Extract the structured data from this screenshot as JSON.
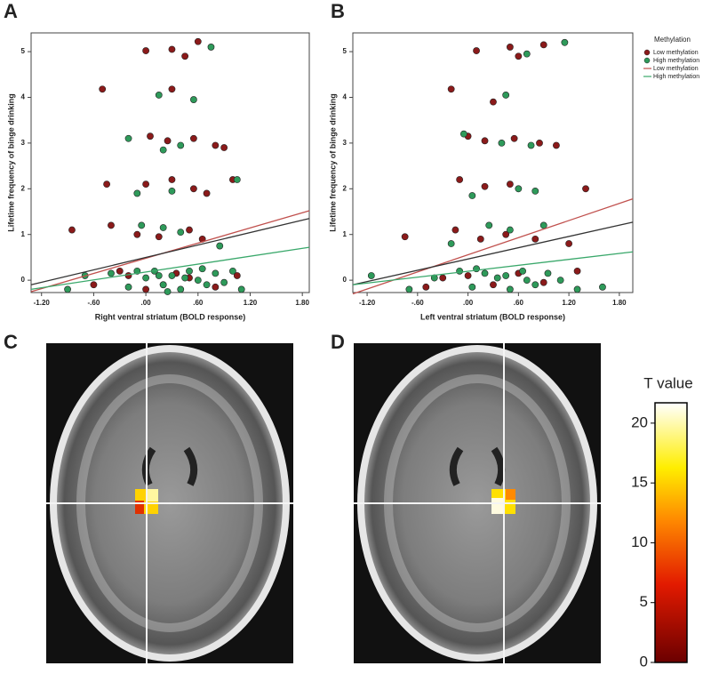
{
  "panel_labels": [
    "A",
    "B",
    "C",
    "D"
  ],
  "chart_data": [
    {
      "type": "scatter",
      "x_label": "Right ventral striatum (BOLD response)",
      "y_label": "Lifetime frequency of binge drinking",
      "xlim": [
        -1.32,
        1.88
      ],
      "ylim": [
        -0.27,
        5.41
      ],
      "xticks": [
        {
          "value": -1.2,
          "label": "-1.20"
        },
        {
          "value": -0.6,
          "label": "-.60"
        },
        {
          "value": 0,
          "label": ".00"
        },
        {
          "value": 0.6,
          "label": ".60"
        },
        {
          "value": 1.2,
          "label": "1.20"
        },
        {
          "value": 1.8,
          "label": "1.80"
        }
      ],
      "yticks": [
        0,
        1,
        2,
        3,
        4,
        5
      ],
      "series": [
        {
          "color": "#8b1a1a",
          "x": [
            -0.85,
            -0.5,
            -0.45,
            -0.4,
            -0.2,
            0.0,
            0.3,
            0.45,
            0.6,
            0.3,
            0.05,
            0.25,
            0.55,
            0.8,
            0.9,
            0.0,
            0.3,
            0.55,
            0.7,
            -0.1,
            0.15,
            0.5,
            1.0,
            -0.3,
            0.2,
            0.5,
            0.8,
            1.05,
            0.0,
            0.35,
            -0.6,
            0.65
          ],
          "y": [
            1.1,
            4.18,
            2.1,
            1.2,
            0.1,
            5.02,
            5.05,
            4.9,
            5.22,
            4.18,
            3.15,
            3.05,
            3.1,
            2.95,
            2.9,
            2.1,
            2.2,
            2.0,
            1.9,
            1.0,
            0.95,
            1.1,
            2.2,
            0.2,
            -0.1,
            0.05,
            -0.15,
            0.1,
            -0.2,
            0.15,
            -0.1,
            0.9
          ]
        },
        {
          "color": "#2e9a5a",
          "x": [
            0.75,
            0.15,
            0.55,
            -0.2,
            0.2,
            0.4,
            -0.1,
            0.3,
            1.05,
            -0.05,
            0.2,
            0.4,
            0.85,
            -0.7,
            -0.4,
            -0.2,
            0.0,
            0.1,
            0.2,
            0.3,
            0.4,
            0.5,
            0.6,
            0.7,
            0.8,
            0.9,
            1.0,
            -0.1,
            0.25,
            0.45,
            0.15,
            0.65,
            -0.9,
            1.1
          ],
          "y": [
            5.1,
            4.05,
            3.95,
            3.1,
            2.85,
            2.95,
            1.9,
            1.95,
            2.2,
            1.2,
            1.15,
            1.05,
            0.75,
            0.1,
            0.15,
            -0.15,
            0.05,
            0.2,
            -0.1,
            0.1,
            -0.2,
            0.2,
            0.0,
            -0.1,
            0.15,
            -0.05,
            0.2,
            0.2,
            -0.25,
            0.05,
            0.1,
            0.25,
            -0.2,
            -0.2
          ]
        }
      ],
      "lines": [
        {
          "color": "#c0504d",
          "x": [
            -1.32,
            1.88
          ],
          "y": [
            -0.25,
            1.52
          ]
        },
        {
          "color": "#333333",
          "x": [
            -1.32,
            1.88
          ],
          "y": [
            -0.1,
            1.35
          ]
        },
        {
          "color": "#3aa86b",
          "x": [
            -1.32,
            1.88
          ],
          "y": [
            -0.2,
            0.72
          ]
        }
      ]
    },
    {
      "type": "scatter",
      "x_label": "Left ventral striatum (BOLD response)",
      "y_label": "Lifetime frequency of binge drinking",
      "xlim": [
        -1.37,
        1.96
      ],
      "ylim": [
        -0.27,
        5.41
      ],
      "xticks": [
        {
          "value": -1.2,
          "label": "-1.20"
        },
        {
          "value": -0.6,
          "label": "-.60"
        },
        {
          "value": 0,
          "label": ".00"
        },
        {
          "value": 0.6,
          "label": ".60"
        },
        {
          "value": 1.2,
          "label": "1.20"
        },
        {
          "value": 1.8,
          "label": "1.80"
        }
      ],
      "yticks": [
        0,
        1,
        2,
        3,
        4,
        5
      ],
      "legend": "right",
      "legend_title": "Methylation",
      "series": [
        {
          "name": "Low methylation",
          "color": "#8b1a1a",
          "x": [
            -0.75,
            -0.2,
            0.1,
            0.5,
            0.9,
            0.6,
            0.3,
            0.0,
            0.2,
            0.55,
            0.85,
            1.05,
            -0.1,
            0.2,
            0.5,
            1.4,
            -0.15,
            0.15,
            0.45,
            0.8,
            1.2,
            -0.5,
            0.0,
            0.3,
            0.6,
            0.9,
            1.3,
            -0.3
          ],
          "y": [
            0.95,
            4.18,
            5.02,
            5.1,
            5.15,
            4.9,
            3.9,
            3.15,
            3.05,
            3.1,
            3.0,
            2.95,
            2.2,
            2.05,
            2.1,
            2.0,
            1.1,
            0.9,
            1.0,
            0.9,
            0.8,
            -0.15,
            0.1,
            -0.1,
            0.15,
            -0.05,
            0.2,
            0.05
          ]
        },
        {
          "name": "High methylation",
          "color": "#2e9a5a",
          "x": [
            0.7,
            1.15,
            0.45,
            -0.05,
            0.4,
            0.75,
            0.05,
            0.6,
            0.8,
            -0.2,
            0.25,
            0.5,
            0.9,
            -1.15,
            -0.7,
            -0.4,
            -0.1,
            0.05,
            0.2,
            0.35,
            0.5,
            0.65,
            0.8,
            0.95,
            1.1,
            1.3,
            1.6,
            0.1,
            0.45,
            0.7
          ],
          "y": [
            4.95,
            5.2,
            4.05,
            3.2,
            3.0,
            2.95,
            1.85,
            2.0,
            1.95,
            0.8,
            1.2,
            1.1,
            1.2,
            0.1,
            -0.2,
            0.05,
            0.2,
            -0.15,
            0.15,
            0.05,
            -0.2,
            0.2,
            -0.1,
            0.15,
            0.0,
            -0.2,
            -0.15,
            0.25,
            0.1,
            0.0
          ]
        }
      ],
      "lines": [
        {
          "name": "Low methylation",
          "color": "#c0504d",
          "x": [
            -1.37,
            1.96
          ],
          "y": [
            -0.3,
            1.78
          ]
        },
        {
          "color": "#333333",
          "x": [
            -1.37,
            1.96
          ],
          "y": [
            -0.1,
            1.27
          ]
        },
        {
          "name": "High methylation",
          "color": "#3aa86b",
          "x": [
            -1.37,
            1.96
          ],
          "y": [
            -0.1,
            0.62
          ]
        }
      ]
    },
    {
      "type": "colorbar",
      "title": "T value",
      "ylim": [
        0,
        21.7
      ],
      "yticks": [
        0,
        5,
        10,
        15,
        20
      ]
    }
  ]
}
